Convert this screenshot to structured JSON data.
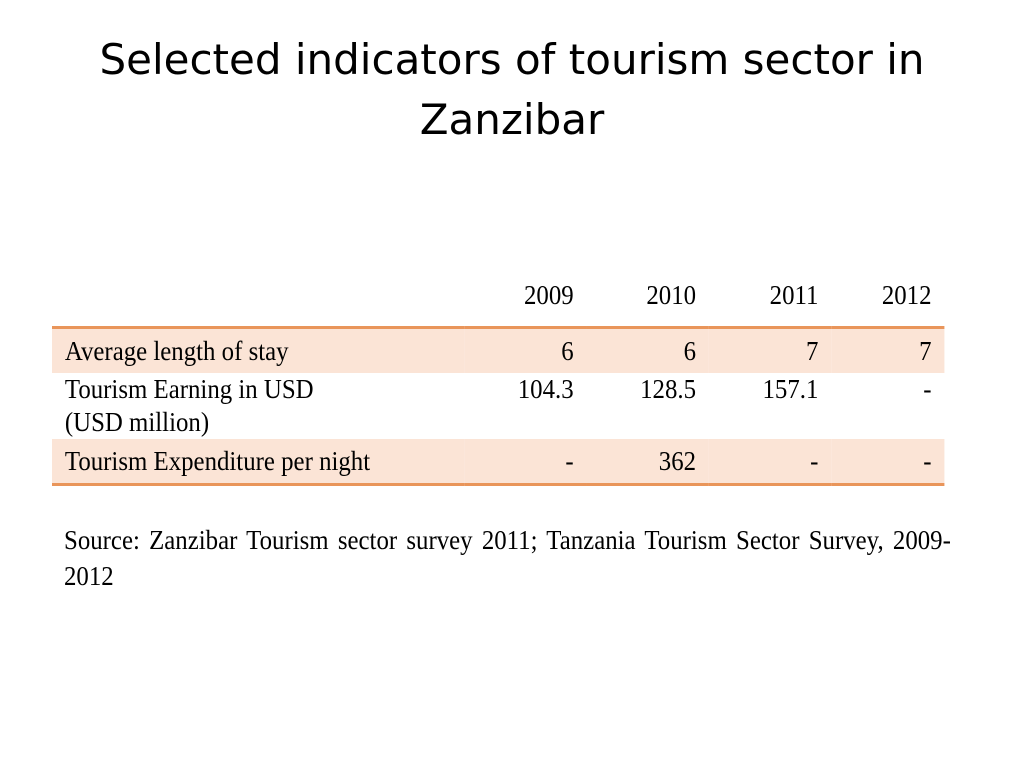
{
  "slide": {
    "title": "Selected indicators of tourism sector in Zanzibar"
  },
  "table": {
    "years": [
      "2009",
      "2010",
      "2011",
      "2012"
    ],
    "rows": [
      {
        "label": "Average length of stay",
        "values": [
          "6",
          "6",
          "7",
          "7"
        ]
      },
      {
        "label_line1": "Tourism Earning in USD",
        "label_line2": "(USD million)",
        "values": [
          "104.3",
          "128.5",
          "157.1",
          "-"
        ]
      },
      {
        "label": "Tourism Expenditure per night",
        "values": [
          "-",
          "362",
          "-",
          "-"
        ]
      }
    ],
    "colors": {
      "rule": "#e9955a",
      "shade": "#fbe4d6"
    }
  },
  "source": "Source: Zanzibar Tourism sector survey 2011; Tanzania Tourism Sector Survey, 2009-2012"
}
